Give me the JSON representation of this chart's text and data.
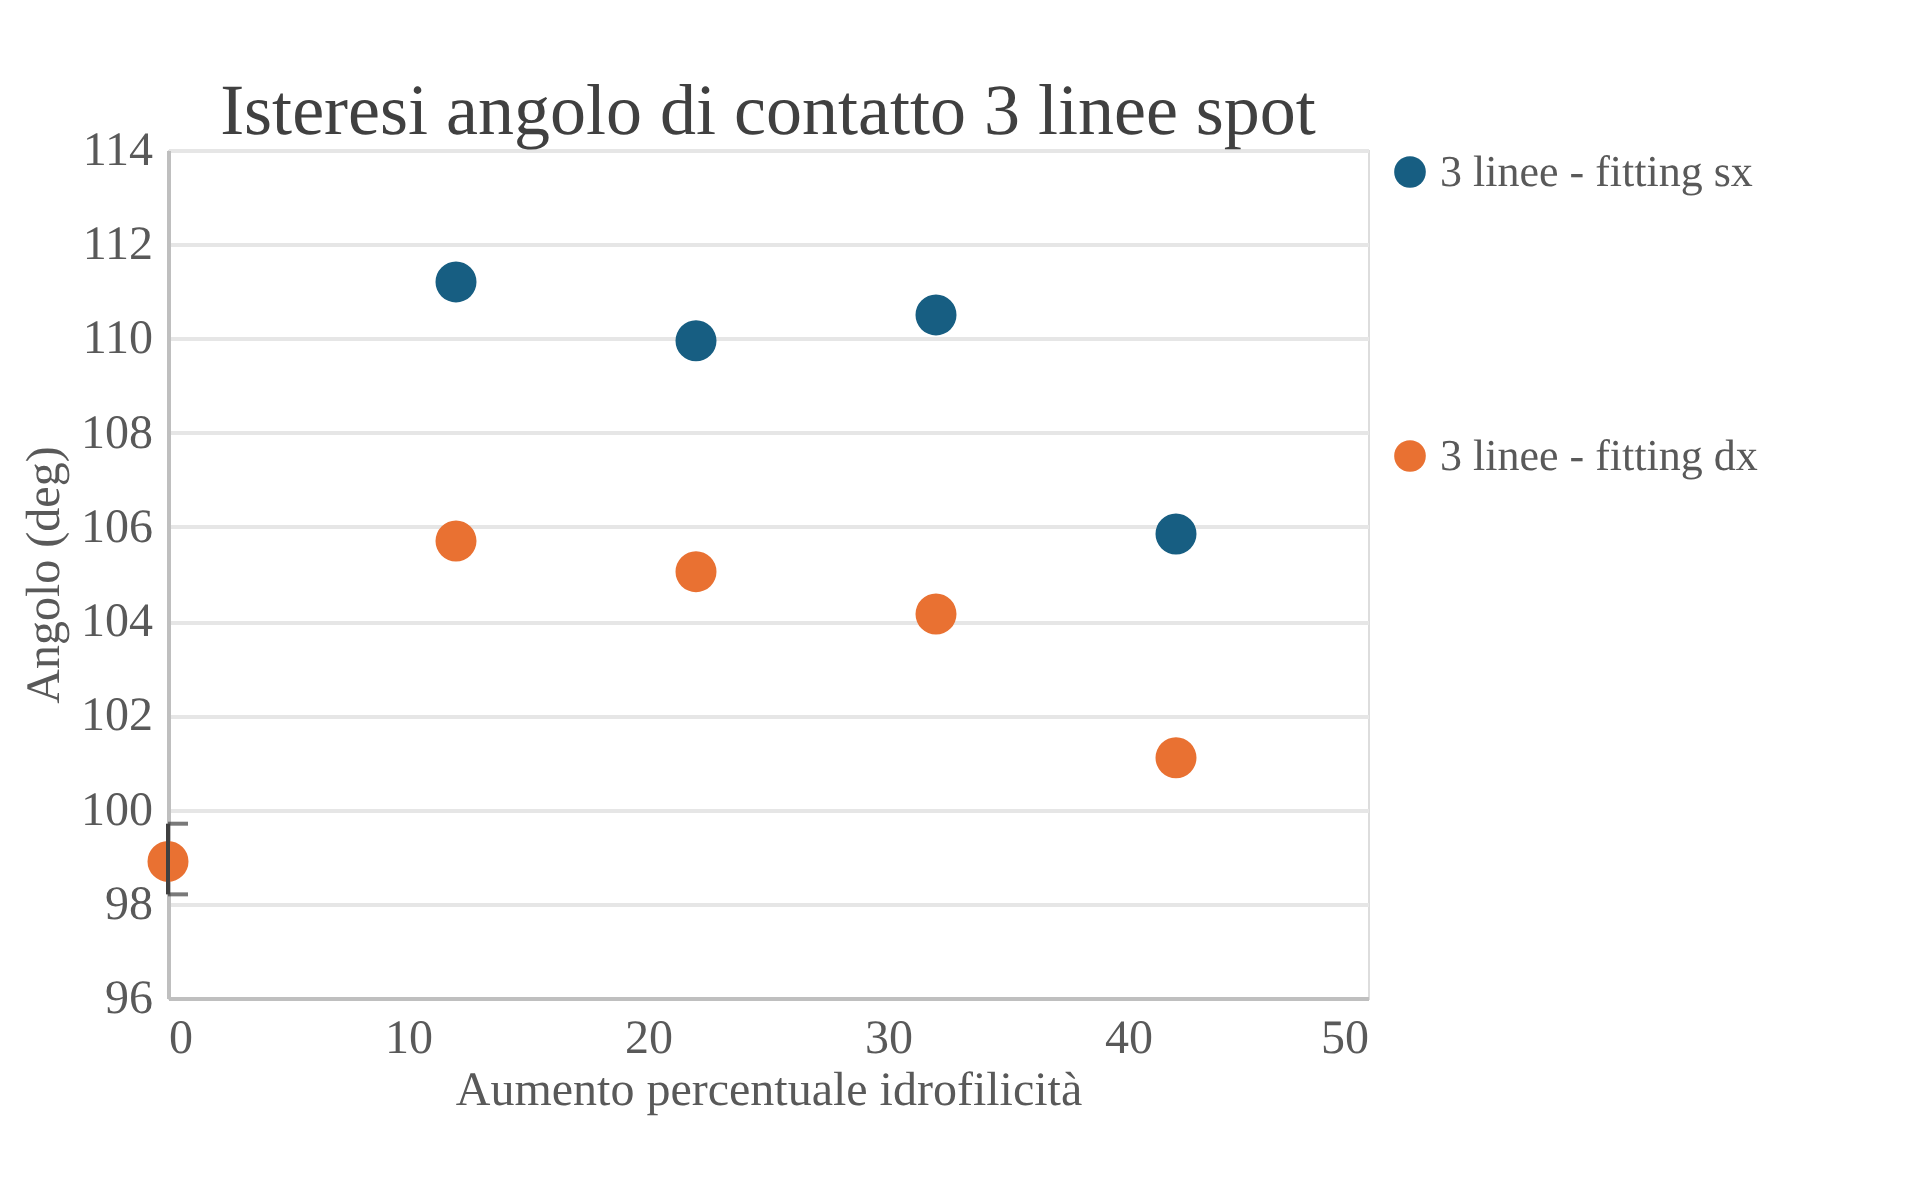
{
  "chart_data": {
    "type": "scatter",
    "title": "Isteresi angolo di contatto 3 linee spot",
    "xlabel": "Aumento percentuale idrofilicità",
    "ylabel": "Angolo (deg)",
    "series": [
      {
        "name": "3 linee - fitting sx",
        "color": "#175e82",
        "x": [
          12,
          22,
          32,
          42
        ],
        "values": [
          111.2,
          109.95,
          110.5,
          105.85
        ]
      },
      {
        "name": "3 linee - fitting dx",
        "color": "#e97132",
        "x": [
          0,
          12,
          22,
          32,
          42
        ],
        "values": [
          98.9,
          105.7,
          105.05,
          104.15,
          101.1
        ],
        "errors": [
          [
            98.2,
            99.7
          ],
          null,
          null,
          null,
          null
        ]
      }
    ],
    "xlim": [
      0,
      50
    ],
    "xticks": [
      0,
      10,
      20,
      30,
      40,
      50
    ],
    "ylim": [
      96,
      114
    ],
    "yticks": [
      96,
      98,
      100,
      102,
      104,
      106,
      108,
      110,
      112,
      114
    ],
    "grid": "y",
    "legend": "right",
    "marker": "circle"
  }
}
